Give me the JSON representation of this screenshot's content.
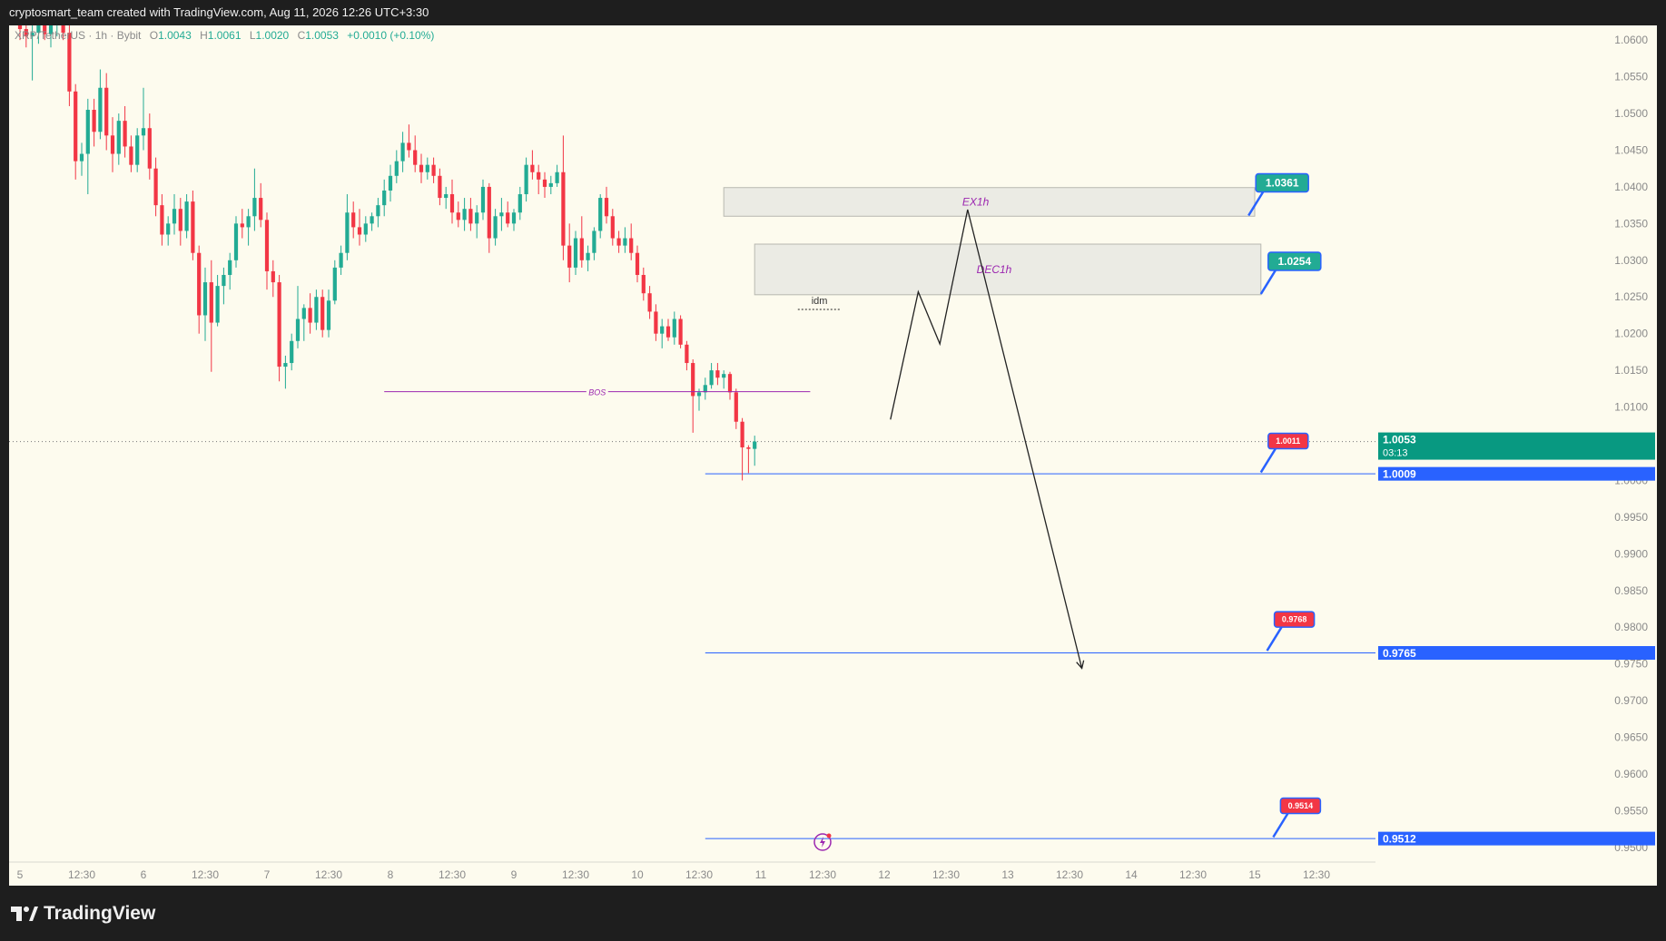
{
  "header": {
    "watermark": "cryptosmart_team created with TradingView.com, Aug 11, 2026 12:26 UTC+3:30"
  },
  "footer": {
    "brand": "TradingView"
  },
  "legend": {
    "symbol": "XRP/TetherUS · 1h · Bybit",
    "open_label": "O",
    "open": "1.0043",
    "high_label": "H",
    "high": "1.0061",
    "low_label": "L",
    "low": "1.0020",
    "close_label": "C",
    "close": "1.0053",
    "change": "+0.0010 (+0.10%)"
  },
  "colors": {
    "up": "#22ab94",
    "down": "#f23645",
    "level_line": "#2962ff",
    "bos_line": "#9c27b0",
    "zone_fill": "#e8e8e2",
    "zone_label": "#9c27b0",
    "background": "#fdfbee"
  },
  "chart_data": {
    "type": "candlestick",
    "ylim": [
      0.948,
      1.062
    ],
    "yticks": [
      1.06,
      1.055,
      1.05,
      1.045,
      1.04,
      1.035,
      1.03,
      1.025,
      1.02,
      1.015,
      1.01,
      1.005,
      1.0,
      0.995,
      0.99,
      0.985,
      0.98,
      0.975,
      0.97,
      0.965,
      0.96,
      0.955,
      0.95
    ],
    "ytick_labels": [
      "1.0600",
      "1.0550",
      "1.0500",
      "1.0450",
      "1.0400",
      "1.0350",
      "1.0300",
      "1.0250",
      "1.0200",
      "1.0150",
      "1.0100",
      "1.0050",
      "1.0000",
      "0.9950",
      "0.9900",
      "0.9850",
      "0.9800",
      "0.9750",
      "0.9700",
      "0.9650",
      "0.9600",
      "0.9550",
      "0.9500"
    ],
    "xlim": [
      0,
      220
    ],
    "xticks": [
      {
        "x": 0,
        "label": "5"
      },
      {
        "x": 10,
        "label": "12:30"
      },
      {
        "x": 20,
        "label": "6"
      },
      {
        "x": 30,
        "label": "12:30"
      },
      {
        "x": 40,
        "label": "7"
      },
      {
        "x": 50,
        "label": "12:30"
      },
      {
        "x": 60,
        "label": "8"
      },
      {
        "x": 70,
        "label": "12:30"
      },
      {
        "x": 80,
        "label": "9"
      },
      {
        "x": 90,
        "label": "12:30"
      },
      {
        "x": 100,
        "label": "10"
      },
      {
        "x": 110,
        "label": "12:30"
      },
      {
        "x": 120,
        "label": "11"
      },
      {
        "x": 130,
        "label": "12:30"
      },
      {
        "x": 140,
        "label": "12"
      },
      {
        "x": 150,
        "label": "12:30"
      },
      {
        "x": 160,
        "label": "13"
      },
      {
        "x": 170,
        "label": "12:30"
      },
      {
        "x": 180,
        "label": "14"
      },
      {
        "x": 190,
        "label": "12:30"
      },
      {
        "x": 200,
        "label": "15"
      },
      {
        "x": 210,
        "label": "12:30"
      }
    ],
    "ohlc": [
      [
        1.062,
        1.064,
        1.06,
        1.0615
      ],
      [
        1.0615,
        1.063,
        1.059,
        1.0605
      ],
      [
        1.0605,
        1.062,
        1.0545,
        1.061
      ],
      [
        1.061,
        1.064,
        1.0595,
        1.0625
      ],
      [
        1.0625,
        1.0645,
        1.06,
        1.0608
      ],
      [
        1.0608,
        1.063,
        1.059,
        1.062
      ],
      [
        1.062,
        1.065,
        1.0605,
        1.0635
      ],
      [
        1.0635,
        1.065,
        1.06,
        1.061
      ],
      [
        1.061,
        1.0625,
        1.051,
        1.053
      ],
      [
        1.053,
        1.054,
        1.041,
        1.0435
      ],
      [
        1.0435,
        1.046,
        1.0415,
        1.0445
      ],
      [
        1.0445,
        1.052,
        1.039,
        1.0505
      ],
      [
        1.0505,
        1.052,
        1.0455,
        1.0475
      ],
      [
        1.0475,
        1.056,
        1.0465,
        1.0535
      ],
      [
        1.0535,
        1.0555,
        1.045,
        1.047
      ],
      [
        1.047,
        1.0495,
        1.042,
        1.0445
      ],
      [
        1.0445,
        1.05,
        1.043,
        1.049
      ],
      [
        1.049,
        1.051,
        1.044,
        1.0455
      ],
      [
        1.0455,
        1.047,
        1.042,
        1.043
      ],
      [
        1.043,
        1.048,
        1.042,
        1.047
      ],
      [
        1.047,
        1.0535,
        1.045,
        1.048
      ],
      [
        1.048,
        1.05,
        1.041,
        1.0425
      ],
      [
        1.0425,
        1.044,
        1.036,
        1.0375
      ],
      [
        1.0375,
        1.039,
        1.032,
        1.0335
      ],
      [
        1.0335,
        1.036,
        1.032,
        1.035
      ],
      [
        1.035,
        1.039,
        1.0335,
        1.037
      ],
      [
        1.037,
        1.0385,
        1.032,
        1.034
      ],
      [
        1.034,
        1.039,
        1.033,
        1.038
      ],
      [
        1.038,
        1.0395,
        1.03,
        1.031
      ],
      [
        1.031,
        1.032,
        1.02,
        1.0225
      ],
      [
        1.0225,
        1.029,
        1.019,
        1.027
      ],
      [
        1.027,
        1.03,
        1.0148,
        1.0215
      ],
      [
        1.0215,
        1.028,
        1.021,
        1.0265
      ],
      [
        1.0265,
        1.029,
        1.024,
        1.028
      ],
      [
        1.028,
        1.031,
        1.026,
        1.03
      ],
      [
        1.03,
        1.036,
        1.029,
        1.035
      ],
      [
        1.035,
        1.037,
        1.033,
        1.0345
      ],
      [
        1.0345,
        1.037,
        1.032,
        1.036
      ],
      [
        1.036,
        1.0425,
        1.034,
        1.0385
      ],
      [
        1.0385,
        1.0405,
        1.0345,
        1.0355
      ],
      [
        1.0355,
        1.0365,
        1.026,
        1.0285
      ],
      [
        1.0285,
        1.03,
        1.025,
        1.027
      ],
      [
        1.027,
        1.028,
        1.0135,
        1.0155
      ],
      [
        1.0155,
        1.017,
        1.0125,
        1.016
      ],
      [
        1.016,
        1.02,
        1.015,
        1.019
      ],
      [
        1.019,
        1.0265,
        1.018,
        1.022
      ],
      [
        1.022,
        1.024,
        1.019,
        1.0235
      ],
      [
        1.0235,
        1.0255,
        1.02,
        1.0215
      ],
      [
        1.0215,
        1.026,
        1.0205,
        1.025
      ],
      [
        1.025,
        1.026,
        1.0195,
        1.0205
      ],
      [
        1.0205,
        1.026,
        1.0195,
        1.0245
      ],
      [
        1.0245,
        1.03,
        1.024,
        1.029
      ],
      [
        1.029,
        1.032,
        1.028,
        1.031
      ],
      [
        1.031,
        1.039,
        1.03,
        1.0365
      ],
      [
        1.0365,
        1.038,
        1.033,
        1.0345
      ],
      [
        1.0345,
        1.037,
        1.032,
        1.0335
      ],
      [
        1.0335,
        1.036,
        1.0325,
        1.035
      ],
      [
        1.035,
        1.0365,
        1.034,
        1.036
      ],
      [
        1.036,
        1.0385,
        1.0345,
        1.0375
      ],
      [
        1.0375,
        1.041,
        1.036,
        1.0395
      ],
      [
        1.0395,
        1.043,
        1.038,
        1.0415
      ],
      [
        1.0415,
        1.045,
        1.0405,
        1.0435
      ],
      [
        1.0435,
        1.0475,
        1.042,
        1.046
      ],
      [
        1.046,
        1.0485,
        1.044,
        1.045
      ],
      [
        1.045,
        1.047,
        1.042,
        1.043
      ],
      [
        1.043,
        1.0445,
        1.0405,
        1.042
      ],
      [
        1.042,
        1.044,
        1.041,
        1.043
      ],
      [
        1.043,
        1.044,
        1.0405,
        1.0415
      ],
      [
        1.0415,
        1.0425,
        1.0375,
        1.0385
      ],
      [
        1.0385,
        1.04,
        1.037,
        1.039
      ],
      [
        1.039,
        1.041,
        1.035,
        1.0365
      ],
      [
        1.0365,
        1.038,
        1.0345,
        1.0355
      ],
      [
        1.0355,
        1.0385,
        1.034,
        1.037
      ],
      [
        1.037,
        1.0385,
        1.034,
        1.035
      ],
      [
        1.035,
        1.0375,
        1.033,
        1.0365
      ],
      [
        1.0365,
        1.041,
        1.0355,
        1.04
      ],
      [
        1.04,
        1.0405,
        1.031,
        1.033
      ],
      [
        1.033,
        1.037,
        1.032,
        1.036
      ],
      [
        1.036,
        1.0385,
        1.034,
        1.0365
      ],
      [
        1.0365,
        1.038,
        1.0345,
        1.035
      ],
      [
        1.035,
        1.037,
        1.034,
        1.0365
      ],
      [
        1.0365,
        1.04,
        1.0355,
        1.039
      ],
      [
        1.039,
        1.044,
        1.038,
        1.043
      ],
      [
        1.043,
        1.045,
        1.041,
        1.042
      ],
      [
        1.042,
        1.043,
        1.039,
        1.041
      ],
      [
        1.041,
        1.042,
        1.0385,
        1.04
      ],
      [
        1.04,
        1.0415,
        1.039,
        1.0405
      ],
      [
        1.0405,
        1.043,
        1.04,
        1.042
      ],
      [
        1.042,
        1.047,
        1.03,
        1.032
      ],
      [
        1.032,
        1.035,
        1.027,
        1.029
      ],
      [
        1.029,
        1.034,
        1.028,
        1.033
      ],
      [
        1.033,
        1.036,
        1.029,
        1.03
      ],
      [
        1.03,
        1.032,
        1.0285,
        1.031
      ],
      [
        1.031,
        1.0345,
        1.03,
        1.034
      ],
      [
        1.034,
        1.039,
        1.033,
        1.0385
      ],
      [
        1.0385,
        1.04,
        1.035,
        1.036
      ],
      [
        1.036,
        1.037,
        1.032,
        1.033
      ],
      [
        1.033,
        1.034,
        1.031,
        1.032
      ],
      [
        1.032,
        1.0345,
        1.031,
        1.033
      ],
      [
        1.033,
        1.035,
        1.03,
        1.031
      ],
      [
        1.031,
        1.032,
        1.027,
        1.028
      ],
      [
        1.028,
        1.029,
        1.0245,
        1.0255
      ],
      [
        1.0255,
        1.0265,
        1.022,
        1.023
      ],
      [
        1.023,
        1.024,
        1.019,
        1.02
      ],
      [
        1.02,
        1.022,
        1.018,
        1.021
      ],
      [
        1.021,
        1.022,
        1.019,
        1.0195
      ],
      [
        1.0195,
        1.023,
        1.0185,
        1.022
      ],
      [
        1.022,
        1.0225,
        1.018,
        1.0185
      ],
      [
        1.0185,
        1.019,
        1.015,
        1.016
      ],
      [
        1.016,
        1.0165,
        1.0065,
        1.0115
      ],
      [
        1.0115,
        1.0125,
        1.0095,
        1.012
      ],
      [
        1.012,
        1.014,
        1.011,
        1.013
      ],
      [
        1.013,
        1.016,
        1.0125,
        1.015
      ],
      [
        1.015,
        1.016,
        1.013,
        1.014
      ],
      [
        1.014,
        1.015,
        1.0125,
        1.0145
      ],
      [
        1.0145,
        1.0148,
        1.011,
        1.012
      ],
      [
        1.012,
        1.0125,
        1.007,
        1.008
      ],
      [
        1.008,
        1.0085,
        1.0,
        1.0045
      ],
      [
        1.0045,
        1.0048,
        1.001,
        1.0043
      ],
      [
        1.0043,
        1.0061,
        1.002,
        1.0053
      ]
    ],
    "price_labels": [
      {
        "price": 1.0053,
        "text": "1.0053",
        "sub": "03:13",
        "color": "#089981"
      },
      {
        "price": 1.0009,
        "text": "1.0009",
        "color": "#2962ff"
      },
      {
        "price": 0.9765,
        "text": "0.9765",
        "color": "#2962ff"
      },
      {
        "price": 0.9512,
        "text": "0.9512",
        "color": "#2962ff"
      }
    ],
    "levels": [
      {
        "price": 1.0009,
        "x_start": 111
      },
      {
        "price": 0.9765,
        "x_start": 111
      },
      {
        "price": 0.9512,
        "x_start": 111
      }
    ],
    "zones": [
      {
        "label": "EX1h",
        "top": 1.0399,
        "bottom": 1.036,
        "x_start": 114,
        "x_end": 200
      },
      {
        "label": "DEC1h",
        "top": 1.0322,
        "bottom": 1.0253,
        "x_start": 119,
        "x_end": 201
      }
    ],
    "bos": {
      "label": "BOS",
      "price": 1.0121,
      "x_start": 59,
      "x_end": 128
    },
    "idm": {
      "label": "idm",
      "price": 1.0233,
      "x_start": 126,
      "x_end": 133
    },
    "callouts": [
      {
        "text": "1.0361",
        "color": "#22ab94",
        "anchor_x": 199,
        "anchor_price": 1.0361
      },
      {
        "text": "1.0254",
        "color": "#22ab94",
        "anchor_x": 201,
        "anchor_price": 1.0254
      },
      {
        "text": "1.0011",
        "color": "#f23645",
        "anchor_x": 201,
        "anchor_price": 1.0011
      },
      {
        "text": "0.9768",
        "color": "#f23645",
        "anchor_x": 202,
        "anchor_price": 0.9768
      },
      {
        "text": "0.9514",
        "color": "#f23645",
        "anchor_x": 203,
        "anchor_price": 0.9514
      }
    ],
    "projection": [
      [
        141,
        1.0083
      ],
      [
        145.5,
        1.0257
      ],
      [
        149,
        1.0186
      ],
      [
        153.5,
        1.0369
      ],
      [
        172,
        0.9744
      ]
    ]
  }
}
